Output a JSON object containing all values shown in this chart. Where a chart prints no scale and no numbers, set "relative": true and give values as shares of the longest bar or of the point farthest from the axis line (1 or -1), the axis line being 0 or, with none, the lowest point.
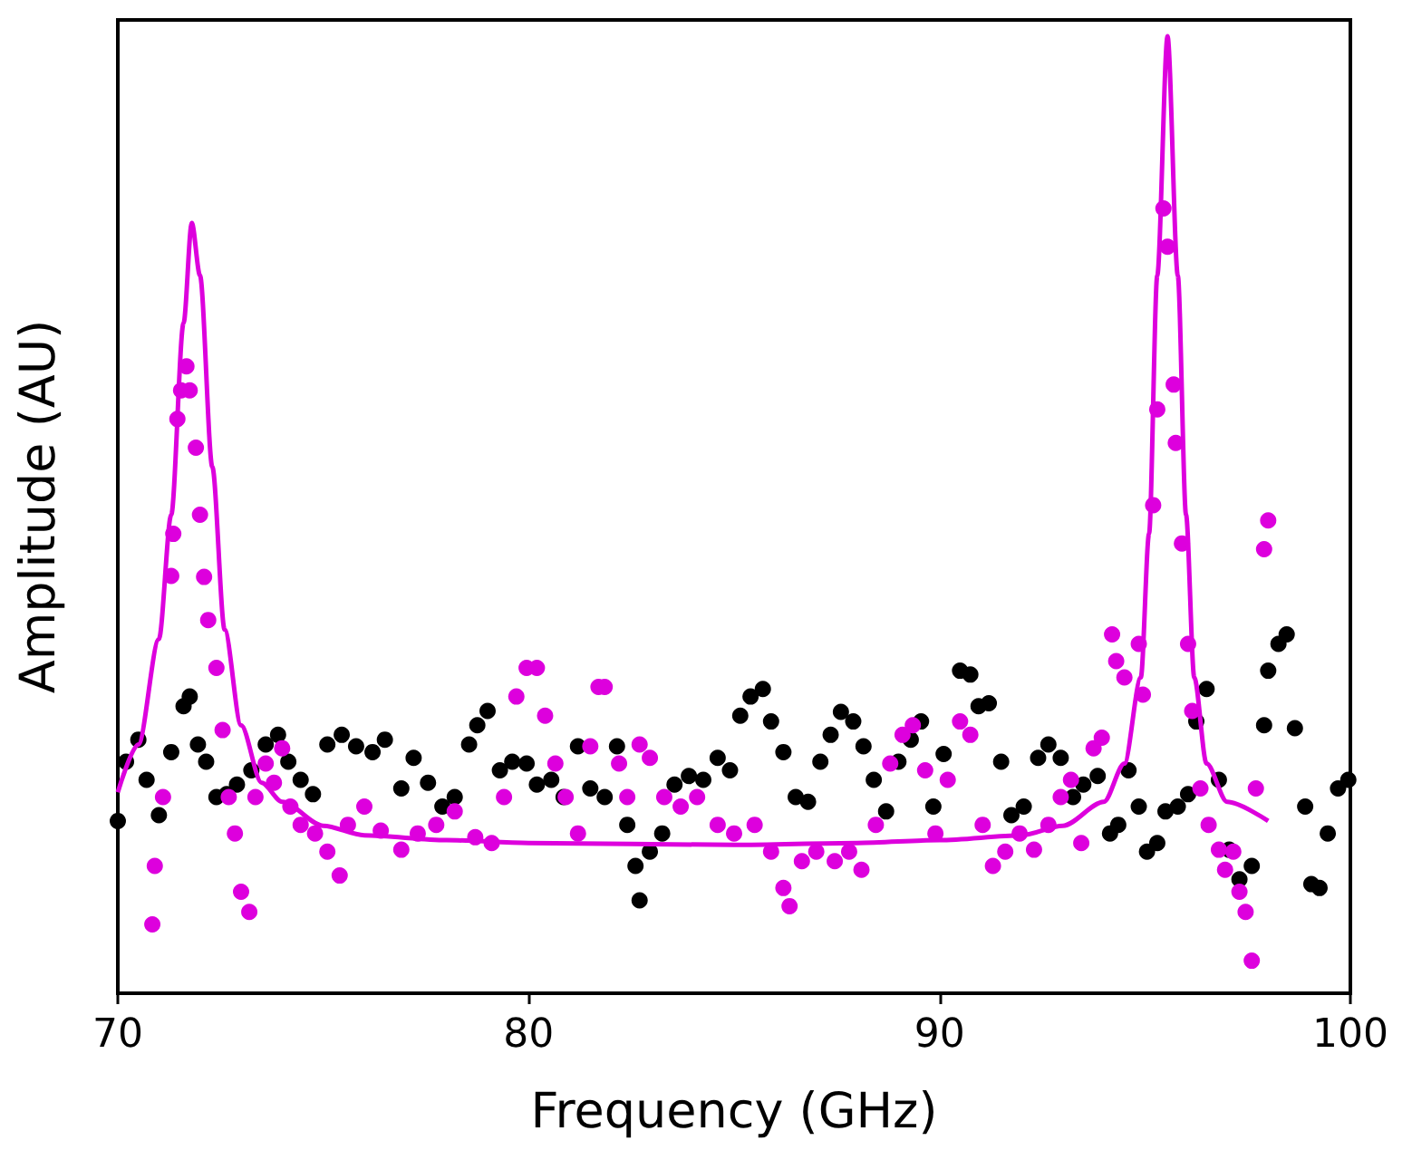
{
  "chart_data": {
    "type": "scatter",
    "xlabel": "Frequency (GHz)",
    "ylabel": "Amplitude (AU)",
    "relative": true,
    "xlim": [
      70,
      100
    ],
    "xticks": [
      70,
      80,
      90,
      100
    ],
    "tick_labels": "x",
    "marker": "circle",
    "series": [
      {
        "color": "#000000",
        "x": [
          70,
          70.2,
          70.5,
          70.7,
          71.0,
          71.3,
          71.6,
          71.75,
          71.95,
          72.15,
          72.4,
          72.65,
          72.9,
          73.25,
          73.6,
          73.9,
          74.15,
          74.45,
          74.75,
          75.1,
          75.45,
          75.8,
          76.2,
          76.5,
          76.9,
          77.2,
          77.55,
          77.9,
          78.2,
          78.55,
          78.75,
          79.0,
          79.3,
          79.6,
          79.95,
          80.2,
          80.55,
          80.85,
          81.2,
          81.5,
          81.85,
          82.15,
          82.4,
          82.6,
          82.7,
          82.95,
          83.25,
          83.55,
          83.9,
          84.25,
          84.6,
          84.9,
          85.15,
          85.4,
          85.7,
          85.9,
          86.2,
          86.5,
          86.8,
          87.1,
          87.35,
          87.6,
          87.9,
          88.15,
          88.4,
          88.7,
          89.0,
          89.3,
          89.55,
          89.85,
          90.1,
          90.5,
          90.75,
          90.95,
          91.2,
          91.5,
          91.75,
          92.05,
          92.4,
          92.65,
          92.95,
          93.25,
          93.5,
          93.85,
          94.15,
          94.35,
          94.6,
          94.85,
          95.05,
          95.3,
          95.5,
          95.8,
          96.05,
          96.25,
          96.5,
          96.8,
          97.05,
          97.3,
          97.6,
          97.9,
          98.0,
          98.25,
          98.45,
          98.65,
          98.9,
          99.05,
          99.25,
          99.45,
          99.7,
          99.95
        ],
        "values": [
          0.18,
          0.242,
          0.265,
          0.223,
          0.186,
          0.252,
          0.3,
          0.31,
          0.26,
          0.242,
          0.205,
          0.208,
          0.218,
          0.233,
          0.26,
          0.27,
          0.242,
          0.223,
          0.208,
          0.26,
          0.27,
          0.258,
          0.252,
          0.265,
          0.214,
          0.246,
          0.22,
          0.195,
          0.205,
          0.26,
          0.28,
          0.295,
          0.233,
          0.242,
          0.24,
          0.218,
          0.223,
          0.205,
          0.258,
          0.214,
          0.205,
          0.258,
          0.176,
          0.133,
          0.097,
          0.148,
          0.167,
          0.218,
          0.227,
          0.223,
          0.246,
          0.233,
          0.29,
          0.31,
          0.318,
          0.284,
          0.252,
          0.205,
          0.2,
          0.242,
          0.27,
          0.294,
          0.284,
          0.258,
          0.223,
          0.19,
          0.242,
          0.265,
          0.284,
          0.195,
          0.25,
          0.337,
          0.333,
          0.3,
          0.303,
          0.242,
          0.186,
          0.195,
          0.246,
          0.26,
          0.246,
          0.205,
          0.218,
          0.227,
          0.167,
          0.176,
          0.233,
          0.195,
          0.148,
          0.157,
          0.19,
          0.195,
          0.208,
          0.284,
          0.318,
          0.223,
          0.15,
          0.119,
          0.133,
          0.28,
          0.337,
          0.365,
          0.375,
          0.277,
          0.195,
          0.114,
          0.11,
          0.167,
          0.214,
          0.223
        ]
      },
      {
        "color": "#dd00dd",
        "x": [
          70.84,
          70.9,
          71.1,
          71.3,
          71.35,
          71.45,
          71.54,
          71.67,
          71.75,
          71.9,
          72.0,
          72.1,
          72.2,
          72.4,
          72.55,
          72.7,
          72.85,
          73.0,
          73.2,
          73.35,
          73.6,
          73.8,
          74.0,
          74.2,
          74.45,
          74.8,
          75.1,
          75.4,
          75.6,
          76.0,
          76.4,
          76.9,
          77.3,
          77.75,
          78.2,
          78.7,
          79.1,
          79.4,
          79.7,
          79.95,
          80.2,
          80.4,
          80.65,
          80.9,
          81.2,
          81.5,
          81.7,
          81.85,
          82.2,
          82.4,
          82.7,
          82.95,
          83.3,
          83.7,
          84.1,
          84.6,
          85.0,
          85.5,
          85.9,
          86.2,
          86.35,
          86.65,
          87.0,
          87.45,
          87.8,
          88.1,
          88.45,
          88.8,
          89.1,
          89.35,
          89.65,
          89.9,
          90.2,
          90.5,
          90.75,
          91.05,
          91.3,
          91.6,
          91.95,
          92.3,
          92.65,
          92.95,
          93.2,
          93.45,
          93.75,
          93.95,
          94.2,
          94.3,
          94.5,
          94.85,
          94.95,
          95.2,
          95.3,
          95.45,
          95.55,
          95.7,
          95.75,
          95.9,
          96.05,
          96.15,
          96.35,
          96.55,
          96.8,
          96.95,
          97.15,
          97.3,
          97.45,
          97.6,
          97.7,
          97.9,
          98.0
        ],
        "values": [
          0.072,
          0.133,
          0.205,
          0.436,
          0.48,
          0.6,
          0.63,
          0.655,
          0.63,
          0.57,
          0.5,
          0.435,
          0.39,
          0.34,
          0.275,
          0.205,
          0.167,
          0.106,
          0.085,
          0.205,
          0.24,
          0.22,
          0.256,
          0.195,
          0.176,
          0.167,
          0.148,
          0.123,
          0.176,
          0.195,
          0.17,
          0.15,
          0.167,
          0.176,
          0.19,
          0.163,
          0.157,
          0.205,
          0.31,
          0.34,
          0.34,
          0.29,
          0.24,
          0.205,
          0.167,
          0.258,
          0.32,
          0.32,
          0.24,
          0.205,
          0.26,
          0.246,
          0.205,
          0.195,
          0.205,
          0.176,
          0.167,
          0.176,
          0.148,
          0.11,
          0.091,
          0.138,
          0.148,
          0.138,
          0.148,
          0.129,
          0.176,
          0.24,
          0.27,
          0.28,
          0.233,
          0.167,
          0.223,
          0.284,
          0.27,
          0.176,
          0.133,
          0.148,
          0.167,
          0.15,
          0.176,
          0.205,
          0.223,
          0.157,
          0.256,
          0.267,
          0.375,
          0.347,
          0.33,
          0.365,
          0.312,
          0.51,
          0.61,
          0.82,
          0.78,
          0.636,
          0.575,
          0.47,
          0.365,
          0.295,
          0.214,
          0.176,
          0.15,
          0.129,
          0.148,
          0.106,
          0.085,
          0.034,
          0.214,
          0.464,
          0.494
        ]
      },
      {
        "type": "line",
        "color": "#dd00dd",
        "marker": "none",
        "x": [
          70,
          70.5,
          71,
          71.3,
          71.6,
          71.8,
          72.0,
          72.3,
          72.6,
          73,
          73.5,
          74,
          75,
          76,
          78,
          80,
          85,
          88,
          90,
          92,
          93,
          94,
          94.5,
          94.9,
          95.1,
          95.3,
          95.55,
          95.8,
          96.0,
          96.2,
          96.5,
          97,
          98
        ],
        "values": [
          0.21,
          0.26,
          0.37,
          0.5,
          0.7,
          0.805,
          0.75,
          0.55,
          0.38,
          0.28,
          0.22,
          0.2,
          0.175,
          0.165,
          0.16,
          0.157,
          0.155,
          0.157,
          0.16,
          0.165,
          0.175,
          0.2,
          0.24,
          0.33,
          0.48,
          0.75,
          1.0,
          0.75,
          0.5,
          0.33,
          0.24,
          0.2,
          0.18
        ]
      }
    ]
  }
}
